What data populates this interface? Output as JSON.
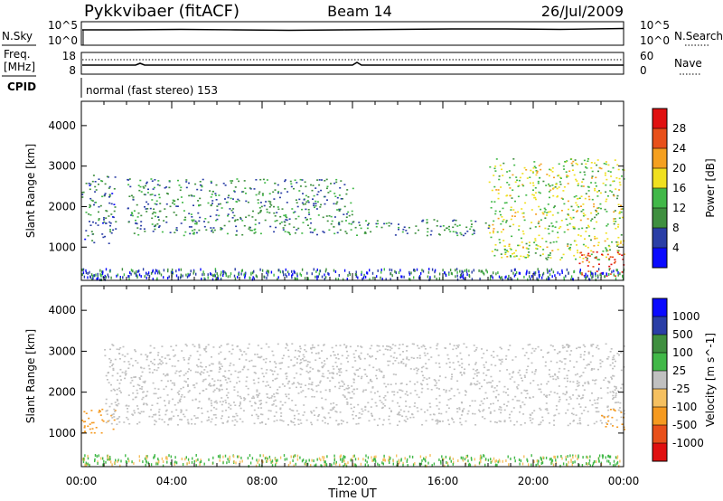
{
  "header": {
    "title": "Pykkvibaer (fitACF)",
    "beam": "Beam 14",
    "date": "26/Jul/2009"
  },
  "noise_panel": {
    "left_label": "N.Sky",
    "right_label": "N.Search",
    "left_ticks": [
      "10^5",
      "10^0"
    ],
    "right_ticks": [
      "10^5",
      "10^0"
    ]
  },
  "freq_panel": {
    "left_label_top": "Freq.",
    "left_label_bottom": "[MHz]",
    "right_label": "Nave",
    "left_ticks": [
      "18",
      "8"
    ],
    "right_ticks": [
      "60",
      "0"
    ]
  },
  "cpid": {
    "label": "CPID",
    "text": "normal (fast stereo) 153"
  },
  "colors": {
    "power": [
      "#0a0aff",
      "#2a3ea6",
      "#3f8f3f",
      "#41b848",
      "#f0e020",
      "#f5a020",
      "#e8501a",
      "#e01010"
    ],
    "velocity": [
      "#0a0aff",
      "#2a3ea6",
      "#3f8f3f",
      "#41b848",
      "#c0c0c0",
      "#f5c060",
      "#f59a20",
      "#e8501a",
      "#e01010"
    ]
  },
  "chart_data": [
    {
      "type": "heatmap",
      "name": "power",
      "ylabel": "Slant Range [km]",
      "ylim": [
        180,
        4600
      ],
      "y_ticks": [
        "1000",
        "2000",
        "3000",
        "4000"
      ],
      "colorbar_label": "Power [dB]",
      "colorbar_ticks": [
        "4",
        "8",
        "12",
        "16",
        "20",
        "24",
        "28"
      ],
      "colorbar_range": [
        0,
        32
      ],
      "echo_bands": [
        {
          "t": [
            0.0,
            1.5
          ],
          "range": [
            1100,
            2800
          ],
          "power_db": 8
        },
        {
          "t": [
            2.0,
            12.0
          ],
          "range": [
            1300,
            2700
          ],
          "power_db": 10
        },
        {
          "t": [
            12.0,
            18.0
          ],
          "range": [
            1300,
            1700
          ],
          "power_db": 10
        },
        {
          "t": [
            18.0,
            24.0
          ],
          "range": [
            700,
            3200
          ],
          "power_db": 16
        },
        {
          "t": [
            22.0,
            24.0
          ],
          "range": [
            300,
            900
          ],
          "power_db": 28
        }
      ]
    },
    {
      "type": "heatmap",
      "name": "velocity",
      "ylabel": "Slant Range [km]",
      "ylim": [
        180,
        4600
      ],
      "y_ticks": [
        "1000",
        "2000",
        "3000",
        "4000"
      ],
      "colorbar_label": "Velocity [m s^-1]",
      "colorbar_ticks": [
        "1000",
        "500",
        "100",
        "25",
        "-25",
        "-100",
        "-500",
        "-1000"
      ],
      "echo_bands": [
        {
          "t": [
            0.0,
            1.5
          ],
          "range": [
            1000,
            1600
          ],
          "velocity": -300
        },
        {
          "t": [
            1.0,
            24.0
          ],
          "range": [
            1200,
            3200
          ],
          "velocity": 0
        },
        {
          "t": [
            23.0,
            24.0
          ],
          "range": [
            1100,
            1600
          ],
          "velocity": -300
        }
      ]
    }
  ],
  "xaxis": {
    "label": "Time UT",
    "ticks": [
      "00:00",
      "04:00",
      "08:00",
      "12:00",
      "16:00",
      "20:00",
      "00:00"
    ],
    "range_hours": [
      0,
      24
    ]
  }
}
